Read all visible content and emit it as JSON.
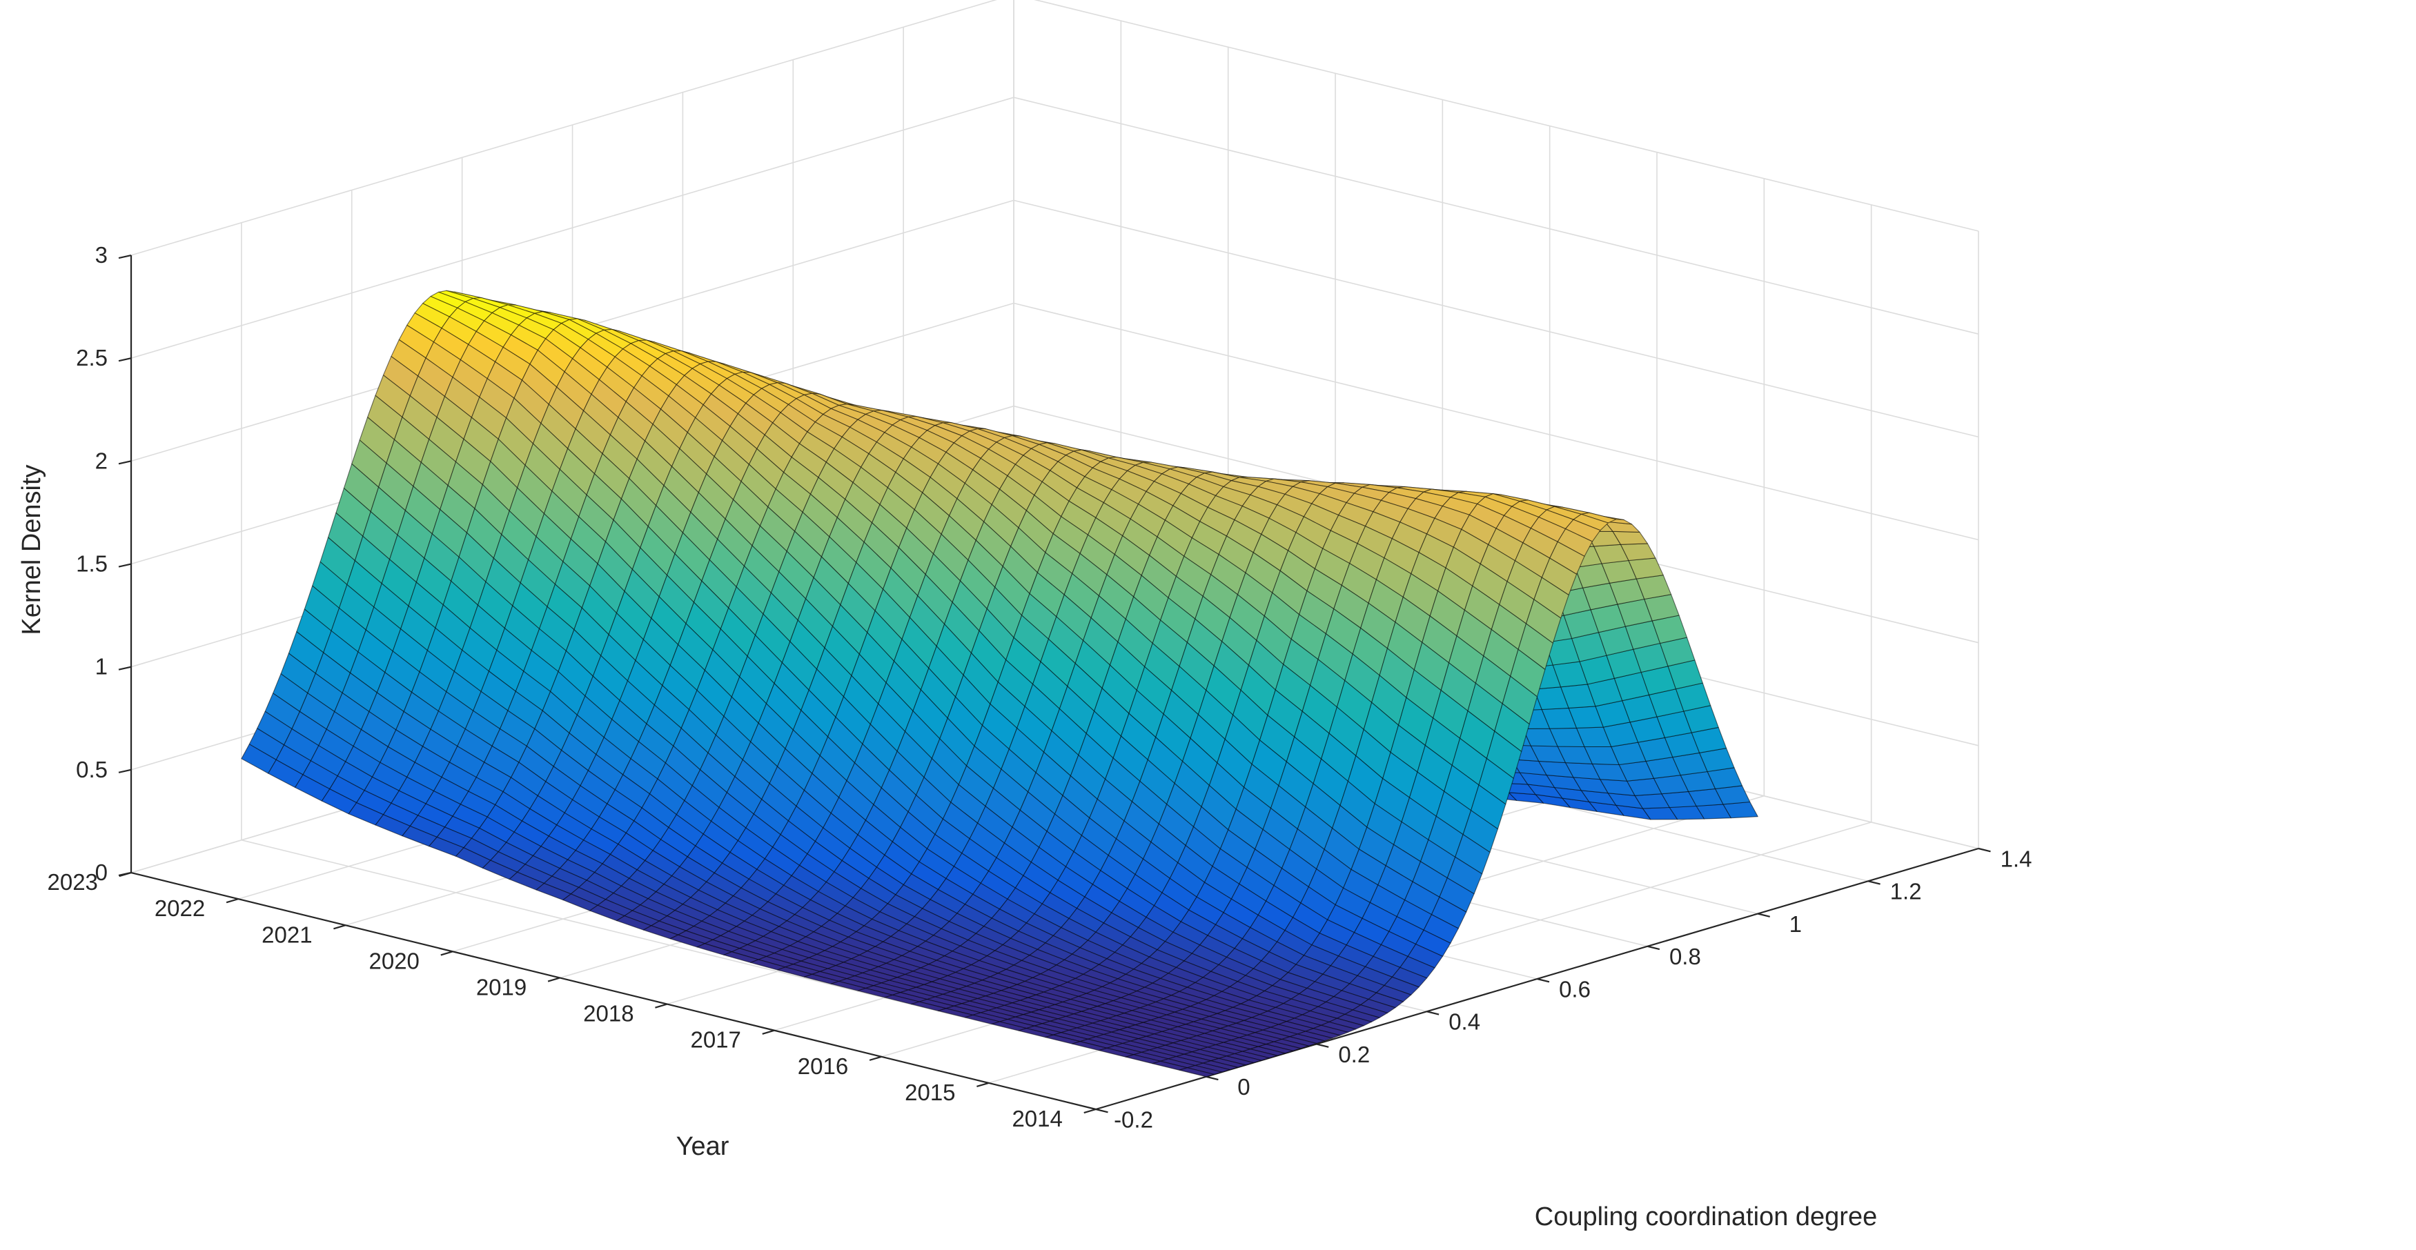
{
  "chart_data": {
    "type": "surface",
    "title": "",
    "xlabel": "Coupling coordination degree",
    "ylabel": "Year",
    "zlabel": "Kernel Density",
    "xlim": [
      -0.2,
      1.4
    ],
    "ylim": [
      2014,
      2023
    ],
    "zlim": [
      0,
      3
    ],
    "x_ticks": [
      "-0.2",
      "0",
      "0.2",
      "0.4",
      "0.6",
      "0.8",
      "1",
      "1.2",
      "1.4"
    ],
    "y_ticks": [
      "2014",
      "2015",
      "2016",
      "2017",
      "2018",
      "2019",
      "2020",
      "2021",
      "2022",
      "2023"
    ],
    "z_ticks": [
      "0",
      "0.5",
      "1",
      "1.5",
      "2",
      "2.5",
      "3"
    ],
    "grid": true,
    "colormap": "parula",
    "years": [
      2014,
      2015,
      2016,
      2017,
      2018,
      2019,
      2020,
      2021,
      2022,
      2023
    ],
    "density_peak_location": [
      0.74,
      0.71,
      0.68,
      0.64,
      0.6,
      0.55,
      0.5,
      0.45,
      0.4,
      0.36
    ],
    "density_peak_height": [
      2.12,
      2.14,
      2.08,
      2.02,
      2.02,
      2.07,
      2.1,
      2.22,
      2.34,
      2.38
    ],
    "density_spread": [
      0.15,
      0.15,
      0.16,
      0.17,
      0.18,
      0.19,
      0.2,
      0.2,
      0.19,
      0.19
    ],
    "surface_x_range": [
      0.0,
      1.0
    ]
  }
}
